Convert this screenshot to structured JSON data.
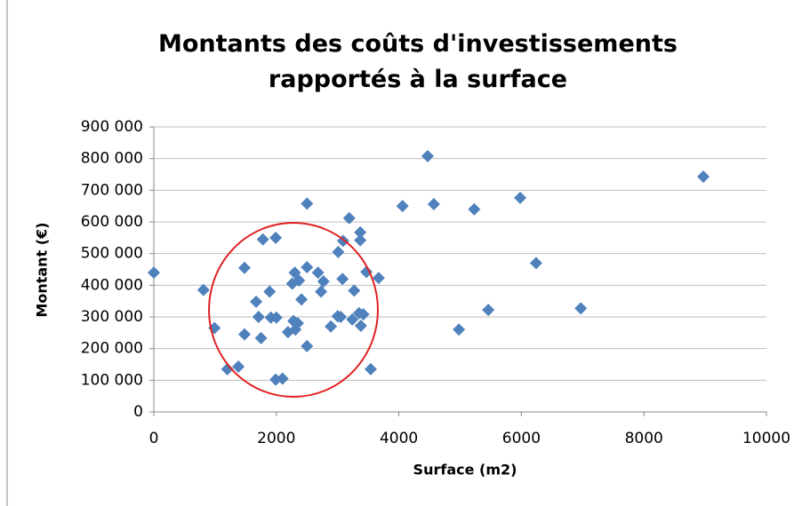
{
  "chart_data": {
    "type": "scatter",
    "title": "Montants des coûts d'investissements rapportés à la surface",
    "x_label": "Surface (m2)",
    "y_label": "Montant (€)",
    "color": "#4f81bd",
    "grid": true,
    "xlim": [
      0,
      10000
    ],
    "xticks": [
      0,
      2000,
      4000,
      6000,
      8000,
      10000
    ],
    "ylim": [
      0,
      900000
    ],
    "yticks": [
      {
        "value": 0,
        "label": "0"
      },
      {
        "value": 100000,
        "label": "100 000"
      },
      {
        "value": 200000,
        "label": "200 000"
      },
      {
        "value": 300000,
        "label": "300 000"
      },
      {
        "value": 400000,
        "label": "400 000"
      },
      {
        "value": 500000,
        "label": "500 000"
      },
      {
        "value": 600000,
        "label": "600 000"
      },
      {
        "value": 700000,
        "label": "700 000"
      },
      {
        "value": 800000,
        "label": "800 000"
      },
      {
        "value": 900000,
        "label": "900 000"
      }
    ],
    "x": [
      0,
      810,
      990,
      1200,
      1380,
      1480,
      1480,
      1670,
      1710,
      1750,
      1780,
      1890,
      1910,
      1990,
      1990,
      2100,
      2000,
      2190,
      2260,
      2300,
      2280,
      2310,
      2350,
      2370,
      2410,
      2500,
      2500,
      2500,
      2680,
      2730,
      2770,
      2890,
      3000,
      3010,
      3050,
      3080,
      3090,
      3190,
      3240,
      3270,
      3370,
      3370,
      3350,
      3380,
      3420,
      3470,
      3540,
      3670,
      4060,
      4470,
      4570,
      4980,
      5230,
      5460,
      5980,
      6240,
      6970,
      8970
    ],
    "values": [
      440000,
      385000,
      265000,
      135000,
      143000,
      455000,
      245000,
      348000,
      300000,
      233000,
      545000,
      380000,
      298000,
      550000,
      102000,
      105000,
      298000,
      252000,
      405000,
      440000,
      287000,
      260000,
      280000,
      415000,
      355000,
      658000,
      457000,
      208000,
      440000,
      380000,
      412000,
      270000,
      302000,
      505000,
      300000,
      420000,
      540000,
      612000,
      292000,
      383000,
      567000,
      542000,
      312000,
      272000,
      308000,
      442000,
      135000,
      423000,
      650000,
      808000,
      656000,
      260000,
      640000,
      322000,
      676000,
      470000,
      327000,
      743000
    ]
  }
}
